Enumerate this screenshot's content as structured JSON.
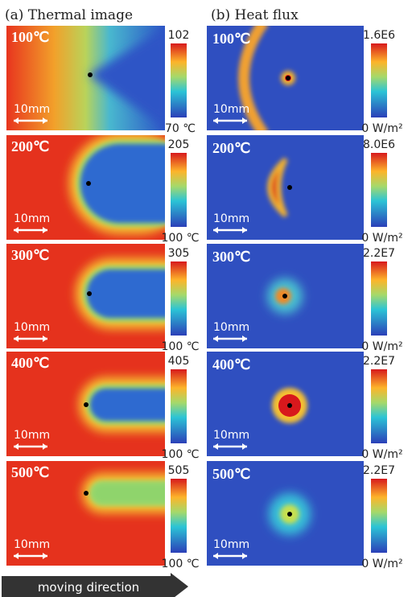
{
  "panels": [
    {
      "title": "(a) Thermal image"
    },
    {
      "title": "(b) Heat flux"
    }
  ],
  "rows": [
    {
      "temperature": "100℃",
      "thermal": {
        "max": "102",
        "min": "70 ℃"
      },
      "flux": {
        "max": "1.6E6",
        "min": "0 W/m²"
      }
    },
    {
      "temperature": "200℃",
      "thermal": {
        "max": "205",
        "min": "100 ℃"
      },
      "flux": {
        "max": "8.0E6",
        "min": "0 W/m²"
      }
    },
    {
      "temperature": "300℃",
      "thermal": {
        "max": "305",
        "min": "100 ℃"
      },
      "flux": {
        "max": "2.2E7",
        "min": "0 W/m²"
      }
    },
    {
      "temperature": "400℃",
      "thermal": {
        "max": "405",
        "min": "100 ℃"
      },
      "flux": {
        "max": "2.2E7",
        "min": "0 W/m²"
      }
    },
    {
      "temperature": "500℃",
      "thermal": {
        "max": "505",
        "min": "100 ℃"
      },
      "flux": {
        "max": "2.2E7",
        "min": "0 W/m²"
      }
    }
  ],
  "scale_bar": "10mm",
  "moving_direction": "moving direction"
}
